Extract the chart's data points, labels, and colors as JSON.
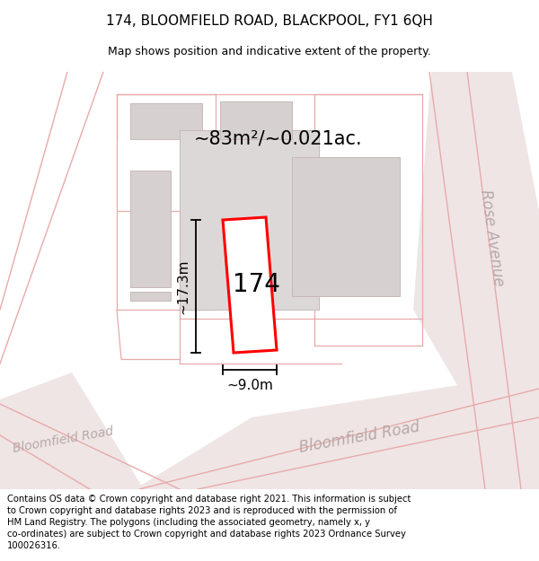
{
  "title": "174, BLOOMFIELD ROAD, BLACKPOOL, FY1 6QH",
  "subtitle": "Map shows position and indicative extent of the property.",
  "footer": "Contains OS data © Crown copyright and database right 2021. This information is subject to Crown copyright and database rights 2023 and is reproduced with the permission of HM Land Registry. The polygons (including the associated geometry, namely x, y co-ordinates) are subject to Crown copyright and database rights 2023 Ordnance Survey 100026316.",
  "area_label": "~83m²/~0.021ac.",
  "width_label": "~9.0m",
  "height_label": "~17.3m",
  "number_label": "174",
  "map_bg": "#f2eded",
  "building_fill": "#d6d0d0",
  "building_edge": "#c8b8b8",
  "highlight_fill": "#ffffff",
  "highlight_edge": "#ff0000",
  "road_line_color": "#e8aaaa",
  "road_fill": "#efe5e5",
  "road_text_color": "#b8a8a8",
  "title_fontsize": 11,
  "subtitle_fontsize": 9,
  "footer_fontsize": 7.2,
  "area_fontsize": 15,
  "number_fontsize": 20,
  "dim_fontsize": 11,
  "road_text_fontsize": 12
}
